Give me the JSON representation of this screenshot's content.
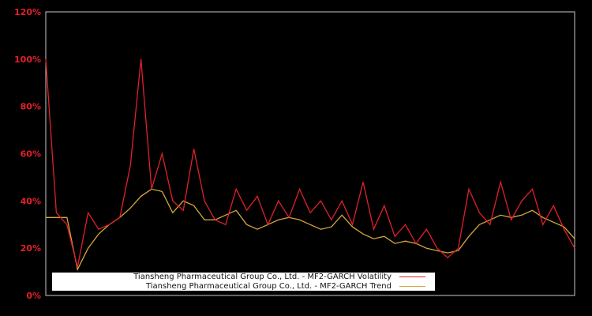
{
  "chart_data": {
    "type": "line",
    "title": "",
    "xlabel": "",
    "ylabel": "",
    "ylim": [
      0,
      120
    ],
    "yticks": [
      "0%",
      "20%",
      "40%",
      "60%",
      "80%",
      "100%",
      "120%"
    ],
    "grid": false,
    "legend_position": "bottom-left inside",
    "x": [
      0,
      2,
      4,
      6,
      8,
      10,
      12,
      14,
      16,
      18,
      20,
      22,
      24,
      26,
      28,
      30,
      32,
      34,
      36,
      38,
      40,
      42,
      44,
      46,
      48,
      50,
      52,
      54,
      56,
      58,
      60,
      62,
      64,
      66,
      68,
      70,
      72,
      74,
      76,
      78,
      80,
      82,
      84,
      86,
      88,
      90,
      92,
      94,
      96,
      98,
      100
    ],
    "series": [
      {
        "name": "Tiansheng Pharmaceutical Group Co., Ltd. - MF2-GARCH Volatility",
        "color": "#e0212b",
        "values": [
          100,
          35,
          30,
          12,
          35,
          28,
          30,
          33,
          55,
          100,
          45,
          60,
          40,
          36,
          62,
          40,
          32,
          30,
          45,
          36,
          42,
          30,
          40,
          33,
          45,
          35,
          40,
          32,
          40,
          30,
          48,
          28,
          38,
          25,
          30,
          22,
          28,
          20,
          16,
          20,
          45,
          35,
          30,
          48,
          32,
          40,
          45,
          30,
          38,
          28,
          20
        ]
      },
      {
        "name": "Tiansheng Pharmaceutical Group Co., Ltd. - MF2-GARCH Trend",
        "color": "#d4a73a",
        "values": [
          33,
          33,
          33,
          11,
          20,
          26,
          30,
          33,
          37,
          42,
          45,
          44,
          35,
          40,
          38,
          32,
          32,
          34,
          36,
          30,
          28,
          30,
          32,
          33,
          32,
          30,
          28,
          29,
          34,
          29,
          26,
          24,
          25,
          22,
          23,
          22,
          20,
          19,
          18,
          19,
          25,
          30,
          32,
          34,
          33,
          34,
          36,
          33,
          31,
          29,
          24
        ]
      }
    ]
  },
  "legend": {
    "volatility_label": "Tiansheng Pharmaceutical Group Co., Ltd. - MF2-GARCH Volatility",
    "trend_label": "Tiansheng Pharmaceutical Group Co., Ltd. - MF2-GARCH Trend"
  }
}
